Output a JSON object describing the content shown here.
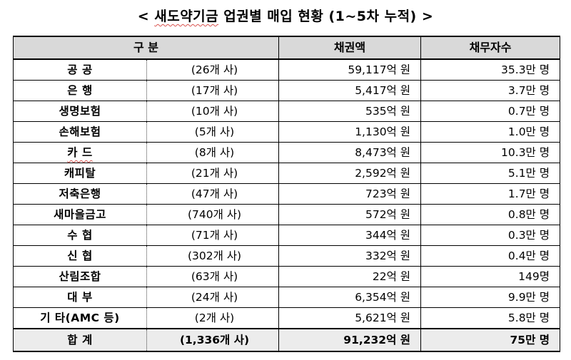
{
  "title": {
    "prefix": "< ",
    "brand": "새도약기금",
    "rest": " 업권별 매입 현황 (1~5차 누적)",
    "suffix": " >"
  },
  "header": {
    "category": "구 분",
    "amount": "채권액",
    "debtors": "채무자수"
  },
  "rows": [
    {
      "category": "공 공",
      "count": "(26개 사)",
      "amount": "59,117억 원",
      "debtors": "35.3만 명"
    },
    {
      "category": "은 행",
      "count": "(17개 사)",
      "amount": "5,417억 원",
      "debtors": "3.7만 명"
    },
    {
      "category": "생명보험",
      "count": "(10개 사)",
      "amount": "535억 원",
      "debtors": "0.7만 명"
    },
    {
      "category": "손해보험",
      "count": "(5개 사)",
      "amount": "1,130억 원",
      "debtors": "1.0만 명"
    },
    {
      "category": "카 드",
      "count": "(8개 사)",
      "amount": "8,473억 원",
      "debtors": "10.3만 명"
    },
    {
      "category": "캐피탈",
      "count": "(21개 사)",
      "amount": "2,592억 원",
      "debtors": "5.1만 명"
    },
    {
      "category": "저축은행",
      "count": "(47개 사)",
      "amount": "723억 원",
      "debtors": "1.7만 명"
    },
    {
      "category": "새마을금고",
      "count": "(740개 사)",
      "amount": "572억 원",
      "debtors": "0.8만 명"
    },
    {
      "category": "수 협",
      "count": "(71개 사)",
      "amount": "344억 원",
      "debtors": "0.3만 명"
    },
    {
      "category": "신 협",
      "count": "(302개 사)",
      "amount": "332억 원",
      "debtors": "0.4만 명"
    },
    {
      "category": "산림조합",
      "count": "(63개 사)",
      "amount": "22억 원",
      "debtors": "149명"
    },
    {
      "category": "대 부",
      "count": "(24개 사)",
      "amount": "6,354억 원",
      "debtors": "9.9만 명"
    },
    {
      "category": "기 타(AMC 등)",
      "count": "(2개 사)",
      "amount": "5,621억 원",
      "debtors": "5.8만 명"
    }
  ],
  "total": {
    "category": "합 계",
    "count": "(1,336개 사)",
    "amount": "91,232억 원",
    "debtors": "75만 명"
  }
}
